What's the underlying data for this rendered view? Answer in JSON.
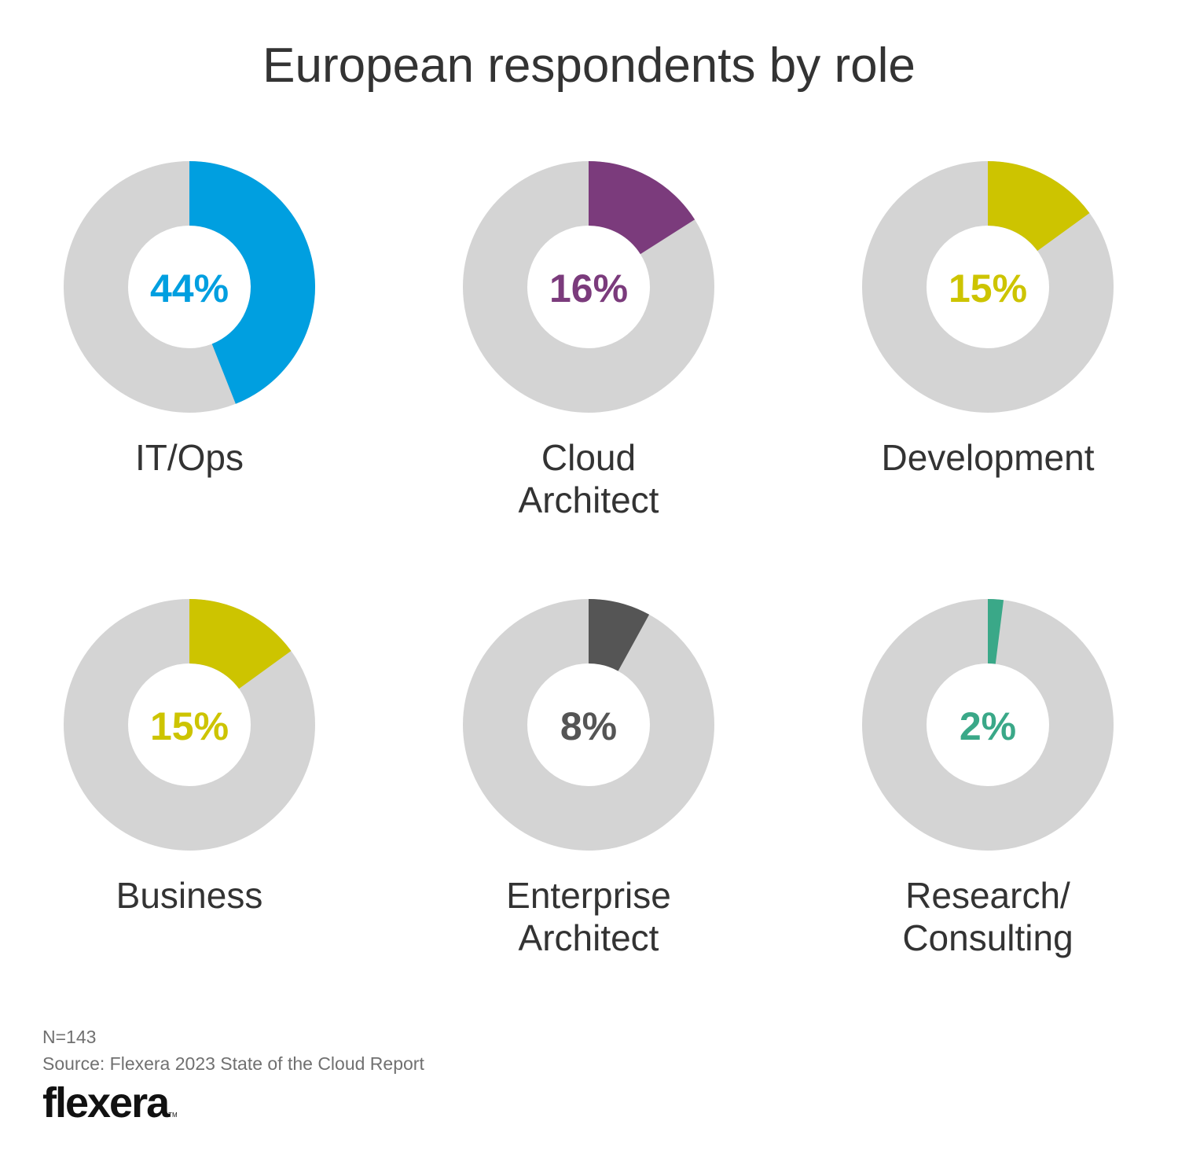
{
  "chart_data": {
    "type": "pie",
    "title": "European respondents by role",
    "series": [
      {
        "name": "IT/Ops",
        "label_lines": [
          "IT/Ops"
        ],
        "value": 44,
        "display": "44%",
        "color": "#009fe0"
      },
      {
        "name": "Cloud Architect",
        "label_lines": [
          "Cloud",
          "Architect"
        ],
        "value": 16,
        "display": "16%",
        "color": "#7b3b7c"
      },
      {
        "name": "Development",
        "label_lines": [
          "Development"
        ],
        "value": 15,
        "display": "15%",
        "color": "#cdc400"
      },
      {
        "name": "Business",
        "label_lines": [
          "Business"
        ],
        "value": 15,
        "display": "15%",
        "color": "#cdc400"
      },
      {
        "name": "Enterprise Architect",
        "label_lines": [
          "Enterprise",
          "Architect"
        ],
        "value": 8,
        "display": "8%",
        "color": "#555555"
      },
      {
        "name": "Research/Consulting",
        "label_lines": [
          "Research/",
          "Consulting"
        ],
        "value": 2,
        "display": "2%",
        "color": "#3aa888"
      }
    ],
    "remainder_color": "#d4d4d4",
    "max": 100
  },
  "footer": {
    "n": "N=143",
    "source": "Source: Flexera 2023 State of the Cloud Report"
  },
  "logo": {
    "text": "flexera",
    "tm": "TM"
  }
}
